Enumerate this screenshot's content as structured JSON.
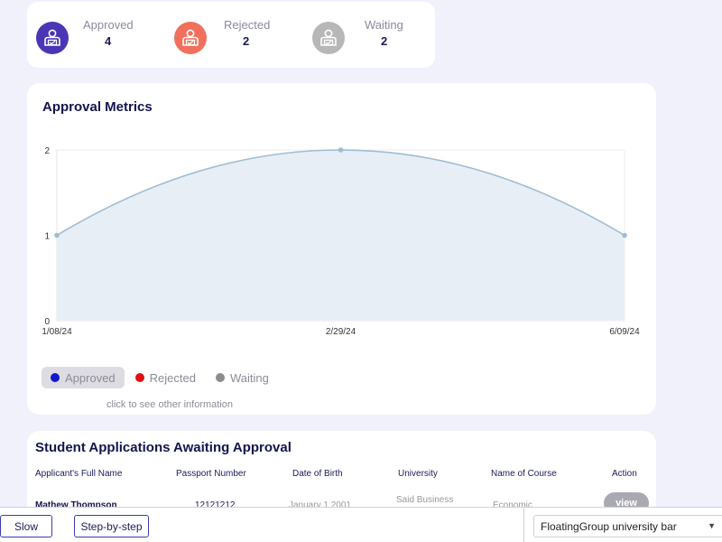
{
  "stats": [
    {
      "label": "Approved",
      "value": "4",
      "color": "#4a35b5",
      "icon": "user-document-icon"
    },
    {
      "label": "Rejected",
      "value": "2",
      "color": "#f0705c",
      "icon": "user-document-icon"
    },
    {
      "label": "Waiting",
      "value": "2",
      "color": "#b7b7b7",
      "icon": "user-document-icon"
    }
  ],
  "metrics": {
    "title": "Approval Metrics",
    "legend": [
      {
        "label": "Approved",
        "color": "#1515c9",
        "active": true
      },
      {
        "label": "Rejected",
        "color": "#e01010",
        "active": false
      },
      {
        "label": "Waiting",
        "color": "#8c8c8c",
        "active": false
      }
    ],
    "hint": "click to see other information"
  },
  "chart_data": {
    "type": "area",
    "x": [
      "1/08/24",
      "2/29/24",
      "6/09/24"
    ],
    "values": [
      1,
      2,
      1
    ],
    "ylim": [
      0,
      2
    ],
    "yticks": [
      "0",
      "1",
      "2"
    ],
    "line_color": "#9fbdd2",
    "fill_color": "#e8eef6",
    "grid": true,
    "title": "",
    "xlabel": "",
    "ylabel": ""
  },
  "table": {
    "title": "Student Applications Awaiting Approval",
    "headers": [
      "Applicant's Full Name",
      "Passport Number",
      "Date of Birth",
      "University",
      "Name of Course",
      "Action"
    ],
    "row": [
      "Mathew Thompson",
      "12121212",
      "January 1 2001",
      "Said Business",
      "Economic",
      "view"
    ]
  },
  "controls": {
    "slow": "Slow",
    "step": "Step-by-step",
    "group": "FloatingGroup university bar"
  }
}
